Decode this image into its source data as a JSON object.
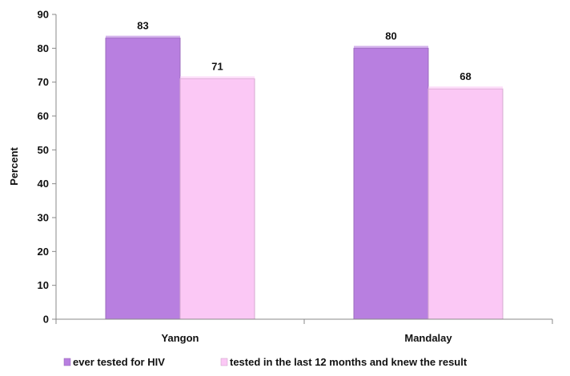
{
  "chart_data": {
    "type": "bar",
    "categories": [
      "Yangon",
      "Mandalay"
    ],
    "series": [
      {
        "name": "ever tested for HIV",
        "values": [
          83,
          80
        ],
        "color": "#b87fe0"
      },
      {
        "name": "tested in the last 12 months and knew the result",
        "values": [
          71,
          68
        ],
        "color": "#fbc8f5"
      }
    ],
    "ylabel": "Percent",
    "ylim": [
      0,
      90
    ],
    "yticks": [
      0,
      10,
      20,
      30,
      40,
      50,
      60,
      70,
      80,
      90
    ],
    "grid": false,
    "legend_position": "bottom"
  }
}
